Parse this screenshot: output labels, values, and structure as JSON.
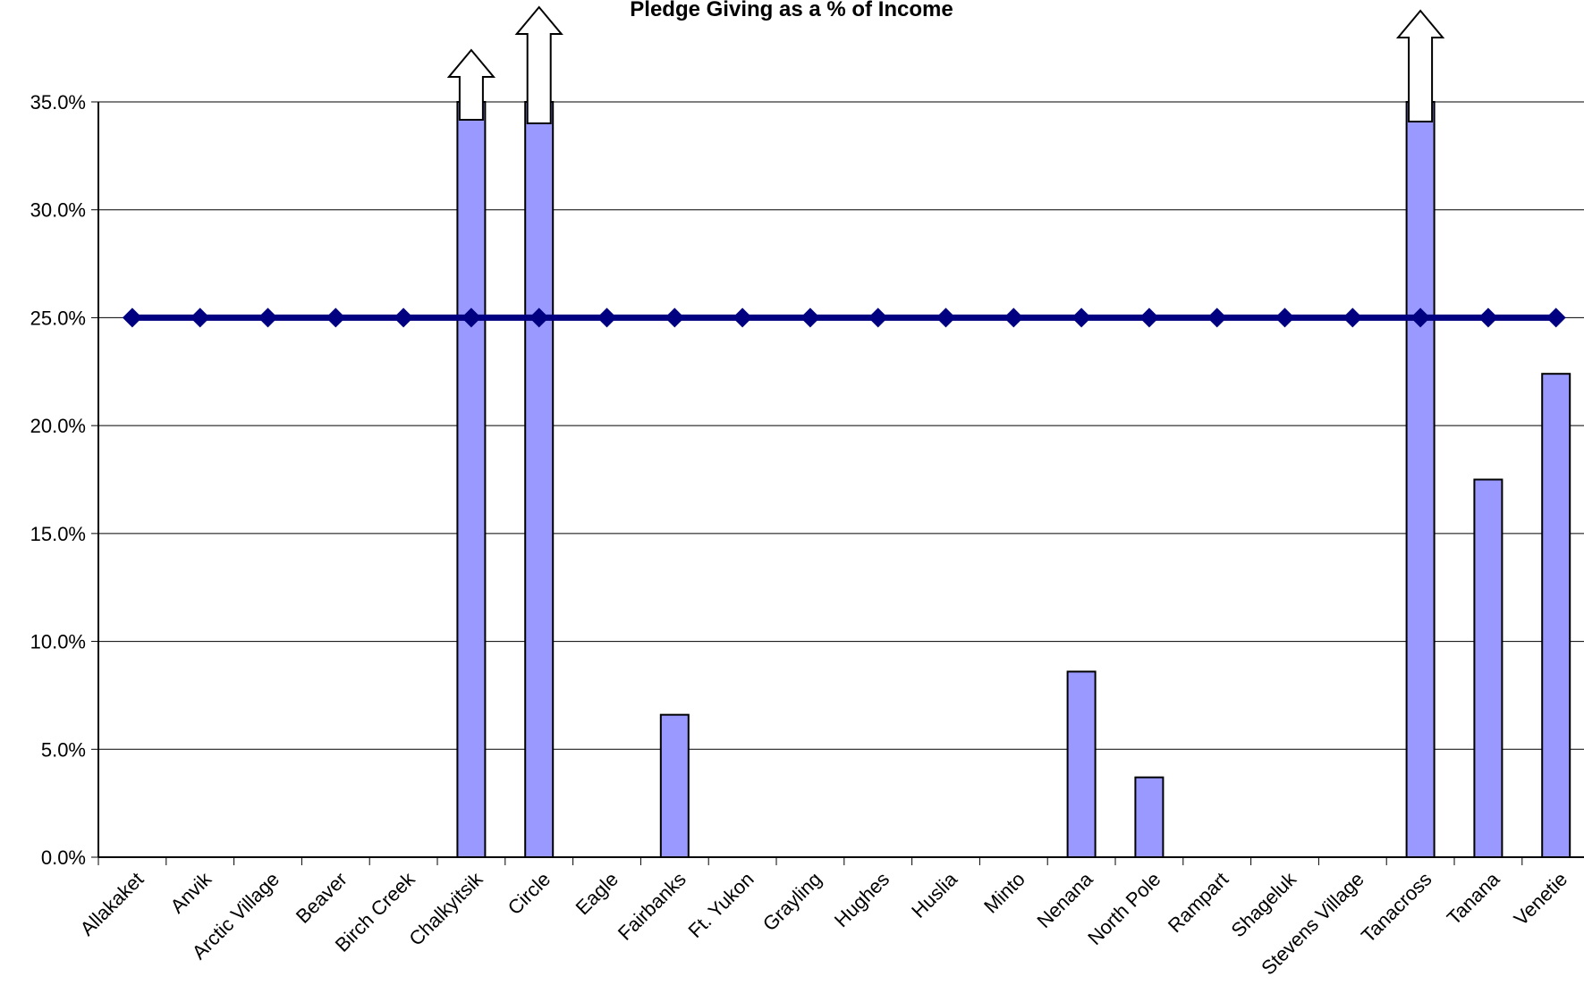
{
  "chart_data": {
    "type": "bar",
    "title": "Pledge Giving as a % of Income",
    "xlabel": "",
    "ylabel": "",
    "ylim": [
      0,
      35
    ],
    "yticks": [
      "0.0%",
      "5.0%",
      "10.0%",
      "15.0%",
      "20.0%",
      "25.0%",
      "30.0%",
      "35.0%"
    ],
    "categories": [
      "Allakaket",
      "Anvik",
      "Arctic Village",
      "Beaver",
      "Birch Creek",
      "Chalkyitsik",
      "Circle",
      "Eagle",
      "Fairbanks",
      "Ft. Yukon",
      "Grayling",
      "Hughes",
      "Huslia",
      "Minto",
      "Nenana",
      "North Pole",
      "Rampart",
      "Shageluk",
      "Stevens Village",
      "Tanacross",
      "Tanana",
      "Venetie"
    ],
    "series": [
      {
        "type": "bar",
        "values": [
          0,
          0,
          0,
          0,
          0,
          35,
          35,
          0,
          6.6,
          0,
          0,
          0,
          0,
          0,
          8.6,
          3.7,
          0,
          0,
          0,
          35,
          17.5,
          22.4
        ],
        "exceeds_axis": [
          false,
          false,
          false,
          false,
          false,
          true,
          true,
          false,
          false,
          false,
          false,
          false,
          false,
          false,
          false,
          false,
          false,
          false,
          false,
          true,
          false,
          false
        ],
        "color": "#9999ff"
      },
      {
        "type": "line",
        "values": [
          25,
          25,
          25,
          25,
          25,
          25,
          25,
          25,
          25,
          25,
          25,
          25,
          25,
          25,
          25,
          25,
          25,
          25,
          25,
          25,
          25,
          25
        ],
        "color": "#000080"
      }
    ],
    "grid": true,
    "legend": "none"
  }
}
